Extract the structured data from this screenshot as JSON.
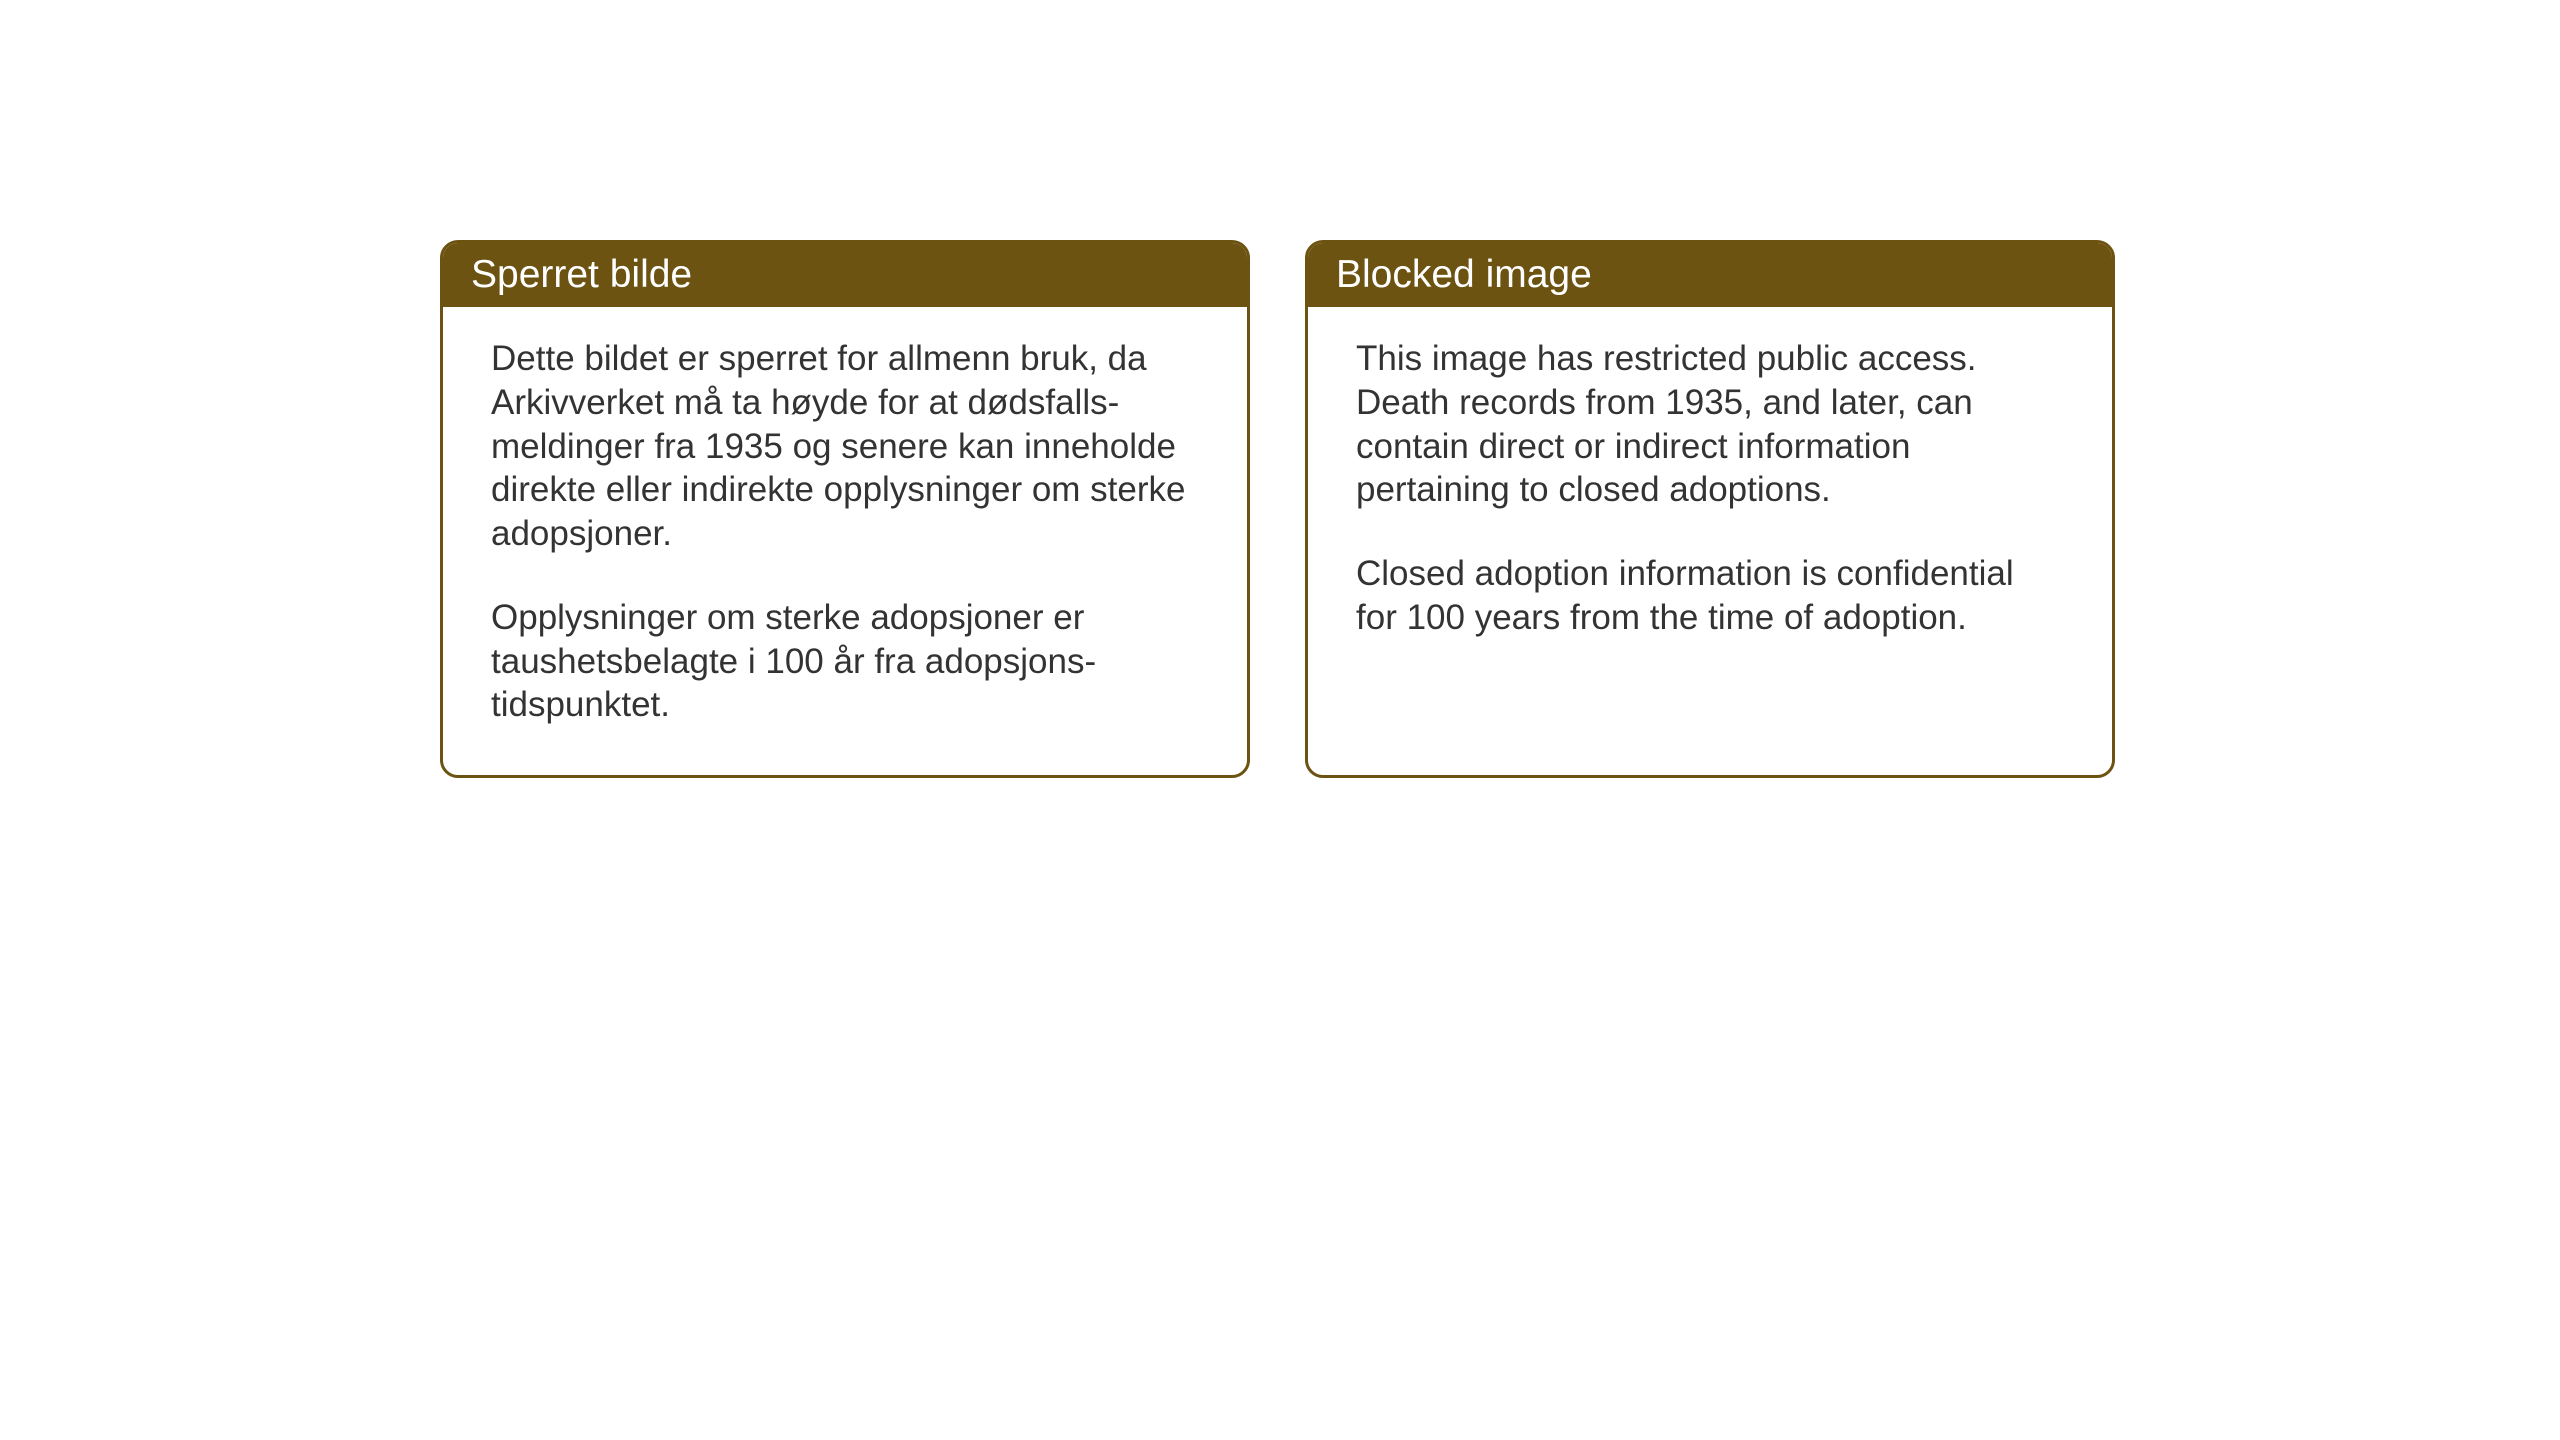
{
  "layout": {
    "background_color": "#ffffff",
    "box_border_color": "#6d5311",
    "header_background_color": "#6d5311",
    "header_text_color": "#ffffff",
    "body_text_color": "#333333",
    "header_fontsize": 39,
    "body_fontsize": 35,
    "border_radius": 18,
    "border_width": 3
  },
  "boxes": [
    {
      "title": "Sperret bilde",
      "para1": "Dette bildet er sperret for allmenn bruk, da Arkivverket må ta høyde for at dødsfalls-meldinger fra 1935 og senere kan inneholde direkte eller indirekte opplysninger om sterke adopsjoner.",
      "para2": "Opplysninger om sterke adopsjoner er taushetsbelagte i 100 år fra adopsjons-tidspunktet."
    },
    {
      "title": "Blocked image",
      "para1": "This image has restricted public access. Death records from 1935, and later, can contain direct or indirect information pertaining to closed adoptions.",
      "para2": "Closed adoption information is confidential for 100 years from the time of adoption."
    }
  ]
}
